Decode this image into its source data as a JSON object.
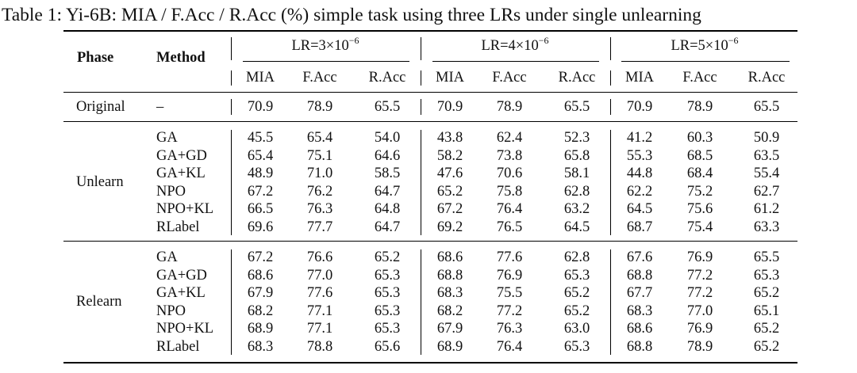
{
  "caption": "Table 1: Yi-6B: MIA / F.Acc / R.Acc (%) simple task using three LRs under single unlearning",
  "header": {
    "phase": "Phase",
    "method": "Method",
    "lr_groups": [
      {
        "base": "LR=3×10",
        "exp": "−6"
      },
      {
        "base": "LR=4×10",
        "exp": "−6"
      },
      {
        "base": "LR=5×10",
        "exp": "−6"
      }
    ],
    "metrics": [
      "MIA",
      "F.Acc",
      "R.Acc"
    ]
  },
  "original": {
    "phase": "Original",
    "method": "–",
    "values": [
      "70.9",
      "78.9",
      "65.5",
      "70.9",
      "78.9",
      "65.5",
      "70.9",
      "78.9",
      "65.5"
    ]
  },
  "unlearn": {
    "phase": "Unlearn",
    "rows": [
      {
        "method": "GA",
        "values": [
          "45.5",
          "65.4",
          "54.0",
          "43.8",
          "62.4",
          "52.3",
          "41.2",
          "60.3",
          "50.9"
        ]
      },
      {
        "method": "GA+GD",
        "values": [
          "65.4",
          "75.1",
          "64.6",
          "58.2",
          "73.8",
          "65.8",
          "55.3",
          "68.5",
          "63.5"
        ]
      },
      {
        "method": "GA+KL",
        "values": [
          "48.9",
          "71.0",
          "58.5",
          "47.6",
          "70.6",
          "58.1",
          "44.8",
          "68.4",
          "55.4"
        ]
      },
      {
        "method": "NPO",
        "values": [
          "67.2",
          "76.2",
          "64.7",
          "65.2",
          "75.8",
          "62.8",
          "62.2",
          "75.2",
          "62.7"
        ]
      },
      {
        "method": "NPO+KL",
        "values": [
          "66.5",
          "76.3",
          "64.8",
          "67.2",
          "76.4",
          "63.2",
          "64.5",
          "75.6",
          "61.2"
        ]
      },
      {
        "method": "RLabel",
        "values": [
          "69.6",
          "77.7",
          "64.7",
          "69.2",
          "76.5",
          "64.5",
          "68.7",
          "75.4",
          "63.3"
        ]
      }
    ]
  },
  "relearn": {
    "phase": "Relearn",
    "rows": [
      {
        "method": "GA",
        "values": [
          "67.2",
          "76.6",
          "65.2",
          "68.6",
          "77.6",
          "62.8",
          "67.6",
          "76.9",
          "65.5"
        ]
      },
      {
        "method": "GA+GD",
        "values": [
          "68.6",
          "77.0",
          "65.3",
          "68.8",
          "76.9",
          "65.3",
          "68.8",
          "77.2",
          "65.3"
        ]
      },
      {
        "method": "GA+KL",
        "values": [
          "67.9",
          "77.6",
          "65.3",
          "68.3",
          "75.5",
          "65.2",
          "67.7",
          "77.2",
          "65.2"
        ]
      },
      {
        "method": "NPO",
        "values": [
          "68.2",
          "77.1",
          "65.3",
          "68.2",
          "77.2",
          "65.2",
          "68.3",
          "77.0",
          "65.1"
        ]
      },
      {
        "method": "NPO+KL",
        "values": [
          "68.9",
          "77.1",
          "65.3",
          "67.9",
          "76.3",
          "63.0",
          "68.6",
          "76.9",
          "65.2"
        ]
      },
      {
        "method": "RLabel",
        "values": [
          "68.3",
          "78.8",
          "65.6",
          "68.9",
          "76.4",
          "65.3",
          "68.8",
          "78.9",
          "65.2"
        ]
      }
    ]
  }
}
